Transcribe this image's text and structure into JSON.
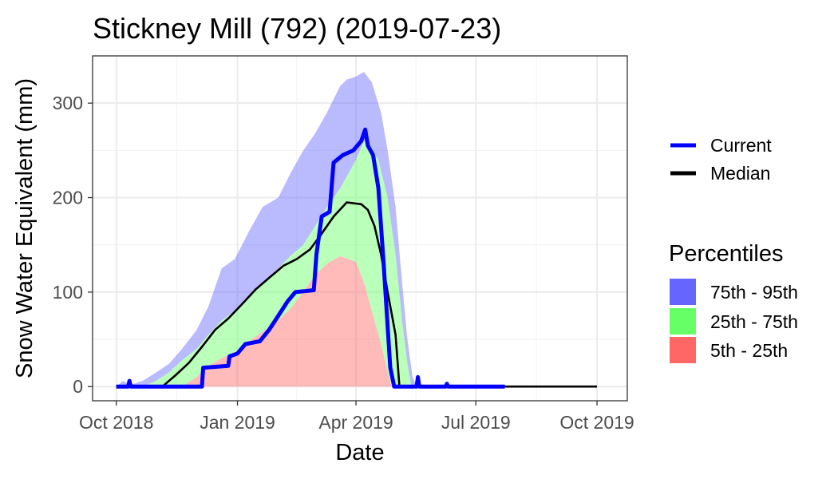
{
  "chart_data": {
    "type": "area",
    "title": "Stickney Mill (792) (2019-07-23)",
    "xlabel": "Date",
    "ylabel": "Snow Water Equivalent (mm)",
    "x_ticks": [
      {
        "value": "2018-10-01",
        "label": "Oct 2018"
      },
      {
        "value": "2019-01-01",
        "label": "Jan 2019"
      },
      {
        "value": "2019-04-01",
        "label": "Apr 2019"
      },
      {
        "value": "2019-07-01",
        "label": "Jul 2019"
      },
      {
        "value": "2019-10-01",
        "label": "Oct 2019"
      }
    ],
    "xlim": [
      "2018-09-13",
      "2019-10-24"
    ],
    "y_ticks": [
      0,
      100,
      200,
      300
    ],
    "ylim": [
      -15,
      350
    ],
    "grid": true,
    "legend_position": "right",
    "legend": {
      "lines": [
        {
          "label": "Current",
          "color": "#0000ff"
        },
        {
          "label": "Median",
          "color": "#000000"
        }
      ],
      "fill_title": "Percentiles",
      "fills": [
        {
          "label": "75th - 95th",
          "color": "#6666ff"
        },
        {
          "label": "25th - 75th",
          "color": "#66ff66"
        },
        {
          "label": "5th - 25th",
          "color": "#ff6666"
        }
      ]
    },
    "bands": {
      "p95": [
        [
          "2018-10-01",
          0
        ],
        [
          "2018-10-06",
          6
        ],
        [
          "2018-10-12",
          2
        ],
        [
          "2018-10-21",
          6
        ],
        [
          "2018-10-30",
          14
        ],
        [
          "2018-11-10",
          24
        ],
        [
          "2018-11-20",
          40
        ],
        [
          "2018-12-01",
          60
        ],
        [
          "2018-12-10",
          85
        ],
        [
          "2018-12-20",
          125
        ],
        [
          "2018-12-30",
          135
        ],
        [
          "2019-01-10",
          165
        ],
        [
          "2019-01-20",
          190
        ],
        [
          "2019-02-01",
          200
        ],
        [
          "2019-02-10",
          225
        ],
        [
          "2019-02-20",
          250
        ],
        [
          "2019-03-01",
          268
        ],
        [
          "2019-03-10",
          290
        ],
        [
          "2019-03-20",
          318
        ],
        [
          "2019-03-25",
          325
        ],
        [
          "2019-04-01",
          328
        ],
        [
          "2019-04-07",
          333
        ],
        [
          "2019-04-13",
          322
        ],
        [
          "2019-04-20",
          290
        ],
        [
          "2019-04-25",
          250
        ],
        [
          "2019-05-01",
          190
        ],
        [
          "2019-05-06",
          110
        ],
        [
          "2019-05-10",
          50
        ],
        [
          "2019-05-14",
          10
        ],
        [
          "2019-05-17",
          0
        ]
      ],
      "p75": [
        [
          "2018-10-01",
          0
        ],
        [
          "2018-10-20",
          0
        ],
        [
          "2018-10-30",
          5
        ],
        [
          "2018-11-10",
          15
        ],
        [
          "2018-11-20",
          28
        ],
        [
          "2018-12-01",
          40
        ],
        [
          "2018-12-10",
          55
        ],
        [
          "2018-12-20",
          70
        ],
        [
          "2018-12-30",
          80
        ],
        [
          "2019-01-10",
          95
        ],
        [
          "2019-01-20",
          110
        ],
        [
          "2019-02-01",
          125
        ],
        [
          "2019-02-10",
          138
        ],
        [
          "2019-02-20",
          150
        ],
        [
          "2019-03-01",
          170
        ],
        [
          "2019-03-10",
          190
        ],
        [
          "2019-03-20",
          210
        ],
        [
          "2019-04-01",
          240
        ],
        [
          "2019-04-07",
          260
        ],
        [
          "2019-04-12",
          255
        ],
        [
          "2019-04-18",
          240
        ],
        [
          "2019-04-25",
          200
        ],
        [
          "2019-05-01",
          140
        ],
        [
          "2019-05-06",
          70
        ],
        [
          "2019-05-10",
          25
        ],
        [
          "2019-05-13",
          0
        ]
      ],
      "p25": [
        [
          "2018-10-01",
          0
        ],
        [
          "2018-11-05",
          0
        ],
        [
          "2018-11-20",
          0
        ],
        [
          "2018-12-01",
          10
        ],
        [
          "2018-12-10",
          22
        ],
        [
          "2018-12-20",
          30
        ],
        [
          "2019-01-01",
          38
        ],
        [
          "2019-01-10",
          48
        ],
        [
          "2019-01-20",
          58
        ],
        [
          "2019-02-01",
          70
        ],
        [
          "2019-02-10",
          82
        ],
        [
          "2019-02-20",
          100
        ],
        [
          "2019-03-01",
          118
        ],
        [
          "2019-03-10",
          130
        ],
        [
          "2019-03-20",
          138
        ],
        [
          "2019-04-01",
          132
        ],
        [
          "2019-04-07",
          110
        ],
        [
          "2019-04-13",
          80
        ],
        [
          "2019-04-20",
          45
        ],
        [
          "2019-04-25",
          15
        ],
        [
          "2019-04-28",
          0
        ]
      ],
      "p5": [
        [
          "2018-10-01",
          0
        ],
        [
          "2019-04-28",
          0
        ]
      ]
    },
    "series": [
      {
        "name": "Current",
        "color": "#0000ff",
        "points": [
          [
            "2018-10-01",
            0
          ],
          [
            "2018-10-10",
            0
          ],
          [
            "2018-10-11",
            6
          ],
          [
            "2018-10-12",
            0
          ],
          [
            "2018-11-20",
            0
          ],
          [
            "2018-12-01",
            0
          ],
          [
            "2018-12-05",
            0
          ],
          [
            "2018-12-06",
            20
          ],
          [
            "2018-12-25",
            22
          ],
          [
            "2018-12-26",
            32
          ],
          [
            "2019-01-01",
            35
          ],
          [
            "2019-01-07",
            45
          ],
          [
            "2019-01-18",
            48
          ],
          [
            "2019-01-25",
            60
          ],
          [
            "2019-02-01",
            75
          ],
          [
            "2019-02-08",
            90
          ],
          [
            "2019-02-14",
            100
          ],
          [
            "2019-02-28",
            102
          ],
          [
            "2019-03-02",
            140
          ],
          [
            "2019-03-06",
            180
          ],
          [
            "2019-03-12",
            185
          ],
          [
            "2019-03-15",
            237
          ],
          [
            "2019-03-22",
            245
          ],
          [
            "2019-03-30",
            250
          ],
          [
            "2019-04-05",
            260
          ],
          [
            "2019-04-08",
            272
          ],
          [
            "2019-04-10",
            255
          ],
          [
            "2019-04-14",
            245
          ],
          [
            "2019-04-18",
            210
          ],
          [
            "2019-04-22",
            130
          ],
          [
            "2019-04-27",
            20
          ],
          [
            "2019-04-30",
            0
          ],
          [
            "2019-05-17",
            0
          ],
          [
            "2019-05-18",
            10
          ],
          [
            "2019-05-19",
            0
          ],
          [
            "2019-06-08",
            0
          ],
          [
            "2019-06-09",
            3
          ],
          [
            "2019-06-10",
            0
          ],
          [
            "2019-07-23",
            0
          ]
        ]
      },
      {
        "name": "Median",
        "color": "#000000",
        "points": [
          [
            "2018-10-01",
            0
          ],
          [
            "2018-11-05",
            0
          ],
          [
            "2018-11-15",
            12
          ],
          [
            "2018-11-25",
            25
          ],
          [
            "2018-12-05",
            42
          ],
          [
            "2018-12-15",
            60
          ],
          [
            "2018-12-25",
            72
          ],
          [
            "2019-01-05",
            88
          ],
          [
            "2019-01-15",
            103
          ],
          [
            "2019-01-25",
            115
          ],
          [
            "2019-02-05",
            128
          ],
          [
            "2019-02-15",
            135
          ],
          [
            "2019-02-25",
            145
          ],
          [
            "2019-03-05",
            160
          ],
          [
            "2019-03-15",
            180
          ],
          [
            "2019-03-25",
            195
          ],
          [
            "2019-04-05",
            193
          ],
          [
            "2019-04-10",
            187
          ],
          [
            "2019-04-15",
            170
          ],
          [
            "2019-04-20",
            140
          ],
          [
            "2019-04-25",
            100
          ],
          [
            "2019-05-01",
            55
          ],
          [
            "2019-05-04",
            0
          ],
          [
            "2019-10-01",
            0
          ]
        ]
      }
    ]
  }
}
